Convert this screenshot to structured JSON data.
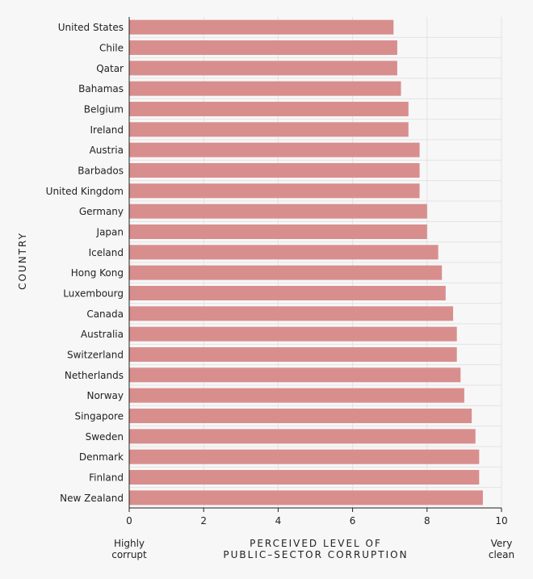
{
  "chart_data": {
    "type": "bar",
    "orientation": "horizontal",
    "categories": [
      "United States",
      "Chile",
      "Qatar",
      "Bahamas",
      "Belgium",
      "Ireland",
      "Austria",
      "Barbados",
      "United Kingdom",
      "Germany",
      "Japan",
      "Iceland",
      "Hong Kong",
      "Luxembourg",
      "Canada",
      "Australia",
      "Switzerland",
      "Netherlands",
      "Norway",
      "Singapore",
      "Sweden",
      "Denmark",
      "Finland",
      "New Zealand"
    ],
    "values": [
      7.1,
      7.2,
      7.2,
      7.3,
      7.5,
      7.5,
      7.8,
      7.8,
      7.8,
      8.0,
      8.0,
      8.3,
      8.4,
      8.5,
      8.7,
      8.8,
      8.8,
      8.9,
      9.0,
      9.2,
      9.3,
      9.4,
      9.4,
      9.5
    ],
    "xlim": [
      0,
      10
    ],
    "xticks": [
      0,
      2,
      4,
      6,
      8,
      10
    ],
    "xlabel_lines": [
      "PERCEIVED LEVEL OF",
      "PUBLIC–SECTOR CORRUPTION"
    ],
    "ylabel": "COUNTRY",
    "x_left_caption": [
      "Highly",
      "corrupt"
    ],
    "x_right_caption": [
      "Very",
      "clean"
    ],
    "bar_color": "#d98e8e",
    "grid": true,
    "grid_color": "#e3e3e3",
    "axis_color": "#222222",
    "background": "#f7f7f7"
  }
}
